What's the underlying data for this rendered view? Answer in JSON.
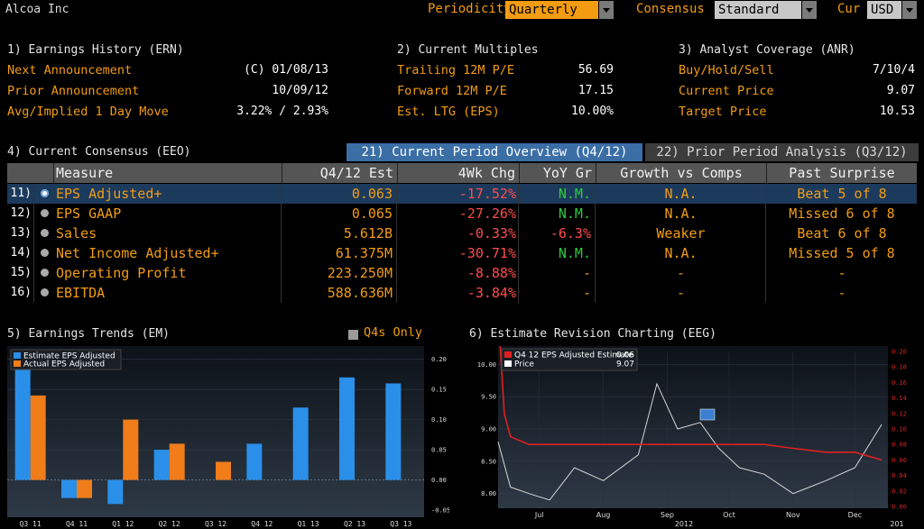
{
  "header": {
    "company": "Alcoa Inc",
    "periodicity_label": "Periodicity",
    "periodicity_value": "Quarterly",
    "consensus_label": "Consensus",
    "consensus_value": "Standard",
    "cur_label": "Cur",
    "cur_value": "USD"
  },
  "earnings_history": {
    "title": "1) Earnings History (ERN)",
    "rows": [
      {
        "label": "Next Announcement",
        "value": "(C)  01/08/13"
      },
      {
        "label": "Prior Announcement",
        "value": "10/09/12"
      },
      {
        "label": "Avg/Implied 1 Day Move",
        "value": "3.22% / 2.93%"
      }
    ]
  },
  "current_multiples": {
    "title": "2) Current Multiples",
    "rows": [
      {
        "label": "Trailing 12M P/E",
        "value": "56.69"
      },
      {
        "label": "Forward 12M P/E",
        "value": "17.15"
      },
      {
        "label": "Est. LTG (EPS)",
        "value": "10.00%"
      }
    ]
  },
  "analyst_coverage": {
    "title": "3) Analyst Coverage (ANR)",
    "rows": [
      {
        "label": "Buy/Hold/Sell",
        "value": "7/10/4"
      },
      {
        "label": "Current Price",
        "value": "9.07"
      },
      {
        "label": "Target Price",
        "value": "10.53"
      }
    ]
  },
  "consensus": {
    "title": "4) Current Consensus (EEO)",
    "tab_current": "21) Current Period Overview (Q4/12)",
    "tab_prior": "22) Prior Period Analysis (Q3/12)",
    "columns": [
      "Measure",
      "Q4/12 Est",
      "4Wk Chg",
      "YoY Gr",
      "Growth vs Comps",
      "Past Surprise"
    ],
    "rows": [
      {
        "num": "11)",
        "measure": "EPS Adjusted+",
        "est": "0.063",
        "chg": "-17.52%",
        "yoy": "N.M.",
        "yoy_color": "green",
        "gvc": "N.A.",
        "ps": "Beat 5 of 8",
        "selected": true
      },
      {
        "num": "12)",
        "measure": "EPS GAAP",
        "est": "0.065",
        "chg": "-27.26%",
        "yoy": "N.M.",
        "yoy_color": "green",
        "gvc": "N.A.",
        "ps": "Missed 6 of 8",
        "selected": false
      },
      {
        "num": "13)",
        "measure": "Sales",
        "est": "5.612B",
        "chg": "-0.33%",
        "yoy": "-6.3%",
        "yoy_color": "red",
        "gvc": "Weaker",
        "ps": "Beat 6 of 8",
        "selected": false
      },
      {
        "num": "14)",
        "measure": "Net Income Adjusted+",
        "est": "61.375M",
        "chg": "-30.71%",
        "yoy": "N.M.",
        "yoy_color": "green",
        "gvc": "N.A.",
        "ps": "Missed 5 of 8",
        "selected": false
      },
      {
        "num": "15)",
        "measure": "Operating Profit",
        "est": "223.250M",
        "chg": "-8.88%",
        "yoy": "-",
        "yoy_color": "orange",
        "gvc": "-",
        "ps": "-",
        "selected": false
      },
      {
        "num": "16)",
        "measure": "EBITDA",
        "est": "588.636M",
        "chg": "-3.84%",
        "yoy": "-",
        "yoy_color": "orange",
        "gvc": "-",
        "ps": "-",
        "selected": false
      }
    ]
  },
  "earnings_trends": {
    "title": "5) Earnings Trends (EM)",
    "q4s_label": "Q4s Only"
  },
  "estimate_revision": {
    "title": "6) Estimate Revision Charting (EEG)"
  },
  "colors": {
    "accent": "#f39c12",
    "estimate_bar": "#2a8fe8",
    "actual_bar": "#f07d1a",
    "negative": "#ff4d4d",
    "positive": "#2ecc40",
    "tab_active": "#3a6ea5"
  },
  "chart_data": [
    {
      "type": "bar",
      "title": "",
      "categories": [
        "Q3 11",
        "Q4 11",
        "Q1 12",
        "Q2 12",
        "Q3 12",
        "Q4 12",
        "Q1 13",
        "Q2 13",
        "Q3 13"
      ],
      "series": [
        {
          "name": "Estimate EPS Adjusted",
          "values": [
            0.21,
            -0.03,
            -0.04,
            0.05,
            null,
            0.06,
            0.12,
            0.17,
            0.16
          ]
        },
        {
          "name": "Actual EPS Adjusted",
          "values": [
            0.14,
            -0.03,
            0.1,
            0.06,
            0.03,
            null,
            null,
            null,
            null
          ]
        }
      ],
      "yticks": [
        "0.20",
        "0.15",
        "0.10",
        "0.05",
        "0.00",
        "-0.05"
      ],
      "ylim": [
        -0.05,
        0.21
      ],
      "legend": "top-left",
      "grid": true
    },
    {
      "type": "line",
      "title": "",
      "series": [
        {
          "name": "Q4 12 EPS Adjusted Estimate",
          "last": "0.06",
          "axis": "right",
          "x": [
            "2012-06-25",
            "2012-06-28",
            "2012-07-01",
            "2012-07-10",
            "2012-07-20",
            "2012-08-01",
            "2012-08-15",
            "2012-09-01",
            "2012-09-20",
            "2012-10-01",
            "2012-10-10",
            "2012-10-20",
            "2012-11-01",
            "2012-11-15",
            "2012-12-01",
            "2012-12-15",
            "2012-12-28"
          ],
          "values": [
            0.25,
            0.12,
            0.09,
            0.08,
            0.08,
            0.08,
            0.08,
            0.08,
            0.08,
            0.08,
            0.08,
            0.08,
            0.08,
            0.075,
            0.07,
            0.07,
            0.06
          ]
        },
        {
          "name": "Price",
          "last": "9.07",
          "axis": "left",
          "x": [
            "2012-06-25",
            "2012-07-01",
            "2012-07-10",
            "2012-07-20",
            "2012-08-01",
            "2012-08-15",
            "2012-09-01",
            "2012-09-10",
            "2012-09-20",
            "2012-10-01",
            "2012-10-10",
            "2012-10-20",
            "2012-11-01",
            "2012-11-15",
            "2012-12-01",
            "2012-12-15",
            "2012-12-28"
          ],
          "values": [
            8.8,
            8.1,
            8.0,
            7.9,
            8.4,
            8.2,
            8.6,
            9.7,
            9.0,
            9.1,
            8.7,
            8.4,
            8.3,
            8.0,
            8.2,
            8.4,
            9.07
          ]
        }
      ],
      "x_ticks": [
        "Jul",
        "Aug",
        "Sep",
        "Oct",
        "Nov",
        "Dec"
      ],
      "x_year_labels": [
        "2012",
        "201"
      ],
      "left_yticks": [
        "10.00",
        "9.50",
        "9.00",
        "8.50",
        "8.00"
      ],
      "right_yticks": [
        "0.20",
        "0.18",
        "0.16",
        "0.14",
        "0.12",
        "0.10",
        "0.08",
        "0.06",
        "0.04",
        "0.02",
        "0.00"
      ],
      "left_ylim": [
        7.8,
        10.2
      ],
      "right_ylim": [
        0.0,
        0.2
      ],
      "legend": "top-left",
      "grid": true
    }
  ]
}
